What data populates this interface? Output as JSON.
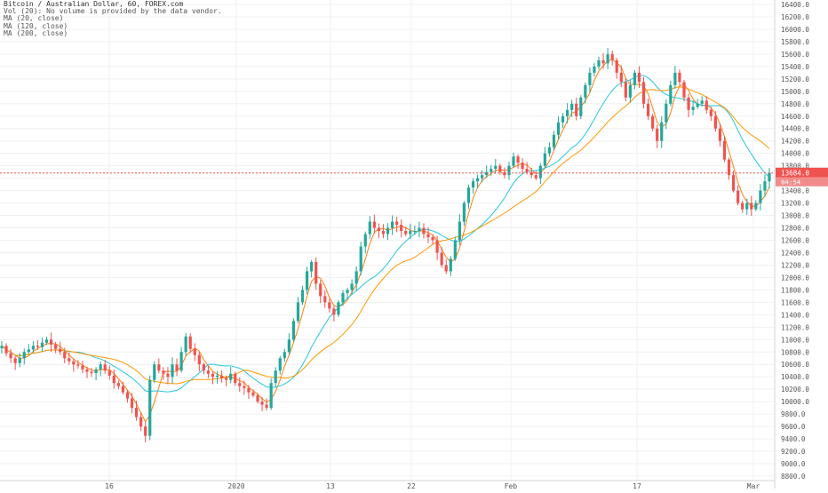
{
  "legend": {
    "title": "Bitcoin / Australian Dollar, 60, FOREX.com",
    "volume": "Vol (20): No volume is provided by the data vendor.",
    "ma20": "MA (20, close)",
    "ma120": "MA (120, close)",
    "ma200": "MA (200, close)"
  },
  "price_tags": {
    "last": "13684.0",
    "countdown": "04:54"
  },
  "colors": {
    "up": "#26a69a",
    "down": "#ef5350",
    "ma20": "#ff7f0e",
    "ma120": "#26c6da",
    "ma200": "#ff9800",
    "grid": "#eef0f3",
    "price_line": "#ef5350",
    "axis_text": "#555555"
  },
  "chart_data": {
    "type": "candlestick",
    "series": [
      {
        "name": "Bitcoin / Australian Dollar",
        "kind": "candles"
      },
      {
        "name": "MA (20, close)",
        "kind": "line"
      },
      {
        "name": "MA (120, close)",
        "kind": "line"
      },
      {
        "name": "MA (200, close)",
        "kind": "line"
      }
    ],
    "x_ticks": [
      "16",
      "2020",
      "13",
      "22",
      "Feb",
      "17",
      "Mar"
    ],
    "y_ticks": [
      "8800.0",
      "9000.0",
      "9200.0",
      "9400.0",
      "9600.0",
      "9800.0",
      "10000.0",
      "10200.0",
      "10400.0",
      "10600.0",
      "10800.0",
      "11000.0",
      "11200.0",
      "11400.0",
      "11600.0",
      "11800.0",
      "12000.0",
      "12200.0",
      "12400.0",
      "12600.0",
      "12800.0",
      "13000.0",
      "13200.0",
      "13400.0",
      "13600.0",
      "13800.0",
      "14000.0",
      "14200.0",
      "14400.0",
      "14600.0",
      "14800.0",
      "15000.0",
      "15200.0",
      "15400.0",
      "15600.0",
      "15800.0",
      "16000.0",
      "16200.0",
      "16400.0"
    ],
    "ylim": [
      8800,
      16400
    ],
    "last_price": 13684.0,
    "close": [
      10900,
      10780,
      10700,
      10620,
      10700,
      10800,
      10840,
      10900,
      10880,
      10950,
      11000,
      10920,
      10850,
      10800,
      10700,
      10650,
      10600,
      10580,
      10520,
      10480,
      10460,
      10520,
      10600,
      10500,
      10420,
      10300,
      10250,
      10150,
      10050,
      9900,
      9750,
      9600,
      9450,
      10350,
      10600,
      10500,
      10450,
      10400,
      10600,
      10500,
      10800,
      11050,
      10850,
      10750,
      10600,
      10500,
      10450,
      10400,
      10420,
      10380,
      10350,
      10450,
      10300,
      10250,
      10220,
      10150,
      10100,
      10000,
      9950,
      9900,
      10300,
      10500,
      10700,
      10800,
      11000,
      11300,
      11600,
      11800,
      12100,
      12250,
      11900,
      11700,
      11600,
      11500,
      11400,
      11600,
      11750,
      11800,
      11900,
      12100,
      12500,
      12700,
      12900,
      12800,
      12750,
      12700,
      12800,
      12900,
      12850,
      12750,
      12700,
      12750,
      12750,
      12800,
      12700,
      12650,
      12600,
      12400,
      12200,
      12100,
      12300,
      12600,
      12900,
      13200,
      13450,
      13550,
      13600,
      13650,
      13700,
      13750,
      13800,
      13700,
      13650,
      13800,
      13950,
      13850,
      13750,
      13700,
      13650,
      13600,
      13800,
      14000,
      14100,
      14300,
      14500,
      14600,
      14700,
      14800,
      14600,
      14900,
      15100,
      15300,
      15400,
      15500,
      15450,
      15600,
      15500,
      15300,
      15150,
      14900,
      15100,
      15300,
      15150,
      14800,
      14600,
      14400,
      14200,
      14500,
      14800,
      15100,
      15300,
      15150,
      14900,
      14700,
      14750,
      14800,
      14850,
      14700,
      14600,
      14400,
      14200,
      13900,
      13650,
      13400,
      13200,
      13100,
      13200,
      13100,
      13200,
      13400,
      13550,
      13684
    ]
  }
}
